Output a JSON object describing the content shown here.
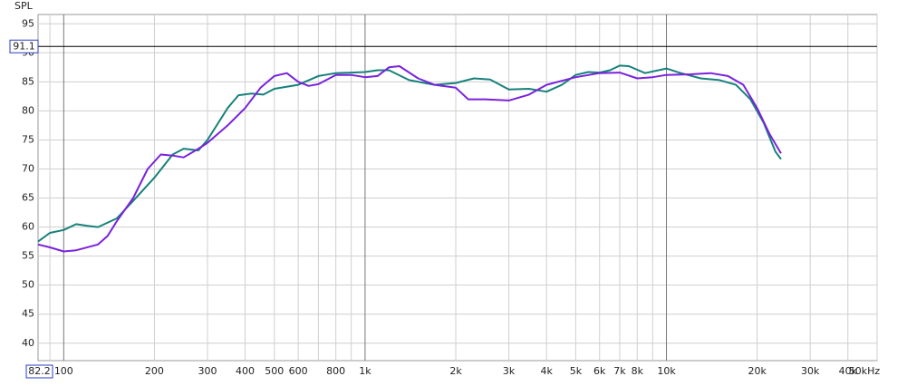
{
  "chart_data": {
    "type": "line",
    "y_label": "SPL",
    "log_x": true,
    "xlim": [
      82.2,
      50000
    ],
    "ylim": [
      37,
      96.6
    ],
    "xticks": [
      100,
      200,
      300,
      400,
      500,
      600,
      800,
      {
        "value": 1000,
        "label": "1k"
      },
      {
        "value": 2000,
        "label": "2k"
      },
      {
        "value": 3000,
        "label": "3k"
      },
      {
        "value": 4000,
        "label": "4k"
      },
      {
        "value": 5000,
        "label": "5k"
      },
      {
        "value": 6000,
        "label": "6k"
      },
      {
        "value": 7000,
        "label": "7k"
      },
      {
        "value": 8000,
        "label": "8k"
      },
      {
        "value": 10000,
        "label": "10k"
      },
      {
        "value": 20000,
        "label": "20k"
      },
      {
        "value": 30000,
        "label": "30k"
      },
      {
        "value": 40000,
        "label": "40k"
      },
      {
        "value": 50000,
        "label": "50kHz"
      }
    ],
    "x_minor_grid": [
      90,
      700,
      900,
      9000
    ],
    "yticks": [
      40,
      45,
      50,
      55,
      60,
      65,
      70,
      75,
      80,
      85,
      90,
      95
    ],
    "grid": true,
    "cursor_y": 91.1,
    "series": [
      {
        "color": "#17807a",
        "x": [
          82.2,
          90,
          100,
          110,
          120,
          130,
          150,
          170,
          200,
          230,
          250,
          280,
          300,
          350,
          380,
          420,
          460,
          500,
          600,
          700,
          800,
          900,
          1000,
          1100,
          1200,
          1400,
          1700,
          2000,
          2300,
          2600,
          3000,
          3500,
          4000,
          4500,
          5000,
          5500,
          6000,
          6500,
          7000,
          7500,
          8500,
          10000,
          11000,
          13000,
          15000,
          17000,
          19000,
          21000,
          23000,
          24000
        ],
        "values": [
          57.5,
          59,
          59.5,
          60.5,
          60.2,
          60,
          61.5,
          64.5,
          68.5,
          72.5,
          73.5,
          73.2,
          75,
          80.5,
          82.7,
          83,
          82.8,
          83.8,
          84.5,
          86,
          86.5,
          86.6,
          86.7,
          87,
          87,
          85.3,
          84.5,
          84.8,
          85.6,
          85.4,
          83.7,
          83.8,
          83.3,
          84.5,
          86.2,
          86.7,
          86.6,
          87,
          87.8,
          87.7,
          86.5,
          87.3,
          86.6,
          85.6,
          85.3,
          84.5,
          82,
          78,
          73,
          71.7
        ]
      },
      {
        "color": "#7a22dc",
        "x": [
          82.2,
          90,
          100,
          110,
          130,
          140,
          150,
          170,
          190,
          210,
          230,
          250,
          280,
          300,
          350,
          400,
          450,
          500,
          550,
          600,
          650,
          700,
          800,
          900,
          1000,
          1100,
          1200,
          1300,
          1500,
          1700,
          2000,
          2200,
          2500,
          3000,
          3500,
          4000,
          5000,
          6000,
          7000,
          8000,
          9000,
          10000,
          12000,
          14000,
          16000,
          18000,
          20000,
          22000,
          24000
        ],
        "values": [
          57,
          56.5,
          55.8,
          56,
          57,
          58.5,
          61,
          65,
          70,
          72.5,
          72.3,
          72,
          73.5,
          74.5,
          77.5,
          80.5,
          84,
          86,
          86.5,
          85,
          84.3,
          84.6,
          86.2,
          86.2,
          85.8,
          86,
          87.5,
          87.7,
          85.6,
          84.5,
          84,
          82,
          82,
          81.8,
          82.8,
          84.5,
          85.8,
          86.5,
          86.6,
          85.6,
          85.8,
          86.2,
          86.3,
          86.5,
          86,
          84.5,
          80.5,
          76,
          72.7
        ]
      }
    ]
  }
}
